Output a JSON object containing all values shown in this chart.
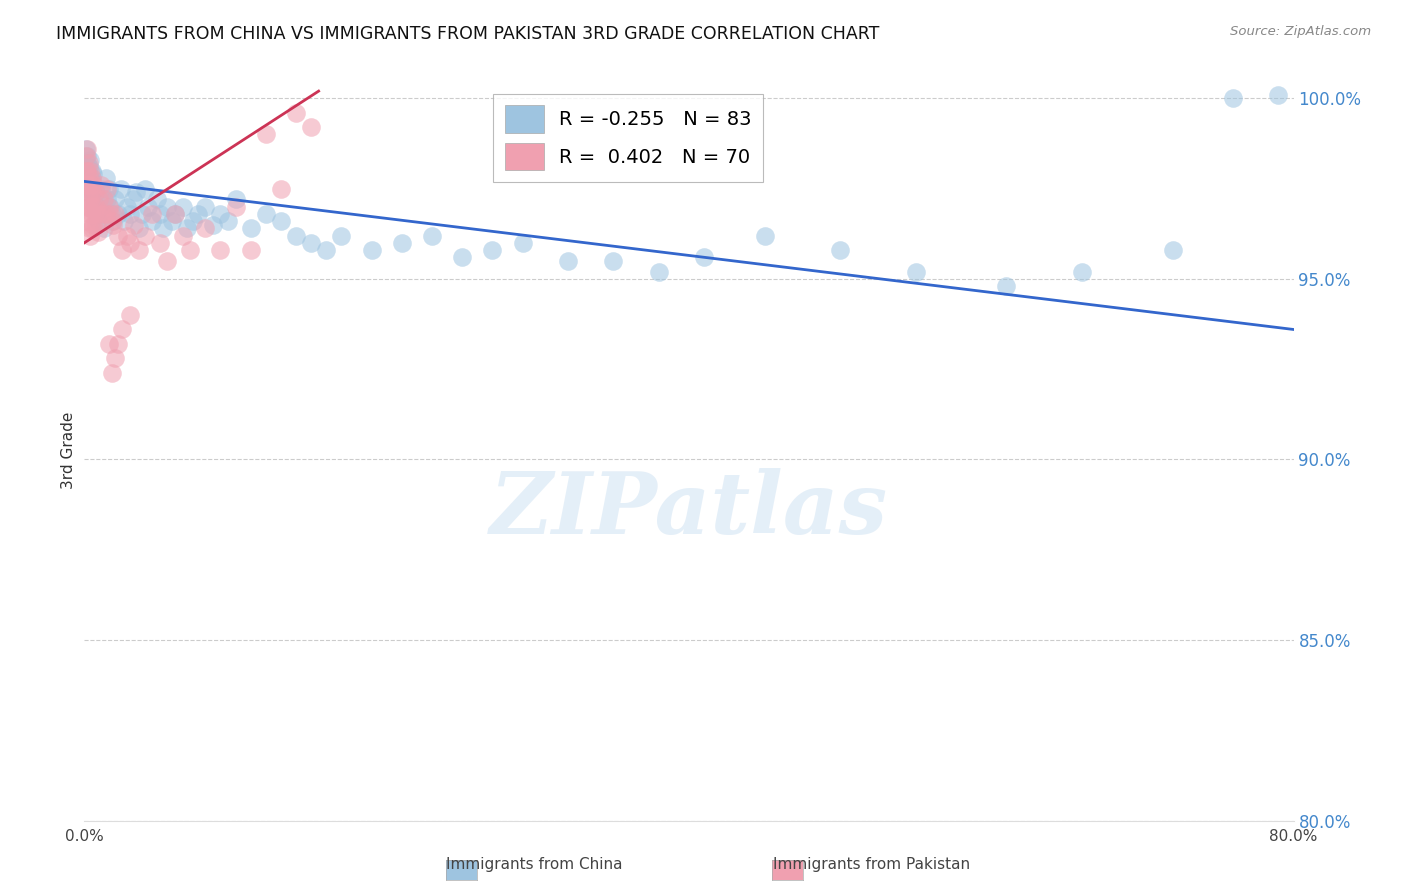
{
  "title": "IMMIGRANTS FROM CHINA VS IMMIGRANTS FROM PAKISTAN 3RD GRADE CORRELATION CHART",
  "source": "Source: ZipAtlas.com",
  "ylabel": "3rd Grade",
  "legend_china": "Immigrants from China",
  "legend_pakistan": "Immigrants from Pakistan",
  "R_china": -0.255,
  "N_china": 83,
  "R_pakistan": 0.402,
  "N_pakistan": 70,
  "color_china": "#9EC4E0",
  "color_pakistan": "#F0A0B0",
  "trendline_china": "#3366CC",
  "trendline_pakistan": "#CC3355",
  "watermark": "ZIPatlas",
  "xlim": [
    0.0,
    0.8
  ],
  "ylim": [
    0.8,
    1.005
  ],
  "yticks": [
    0.8,
    0.85,
    0.9,
    0.95,
    1.0
  ],
  "xticks": [
    0.0,
    0.8
  ],
  "china_x": [
    0.001,
    0.002,
    0.002,
    0.003,
    0.003,
    0.004,
    0.004,
    0.004,
    0.005,
    0.005,
    0.005,
    0.006,
    0.006,
    0.006,
    0.007,
    0.007,
    0.008,
    0.008,
    0.009,
    0.009,
    0.01,
    0.011,
    0.012,
    0.013,
    0.014,
    0.015,
    0.016,
    0.017,
    0.018,
    0.019,
    0.02,
    0.022,
    0.024,
    0.026,
    0.028,
    0.03,
    0.032,
    0.034,
    0.036,
    0.038,
    0.04,
    0.042,
    0.045,
    0.048,
    0.05,
    0.052,
    0.055,
    0.058,
    0.06,
    0.065,
    0.068,
    0.072,
    0.075,
    0.08,
    0.085,
    0.09,
    0.095,
    0.1,
    0.11,
    0.12,
    0.13,
    0.14,
    0.15,
    0.16,
    0.17,
    0.19,
    0.21,
    0.23,
    0.25,
    0.27,
    0.29,
    0.32,
    0.35,
    0.38,
    0.41,
    0.45,
    0.5,
    0.55,
    0.61,
    0.66,
    0.72,
    0.76,
    0.79
  ],
  "china_y": [
    0.986,
    0.984,
    0.982,
    0.981,
    0.979,
    0.983,
    0.978,
    0.975,
    0.977,
    0.98,
    0.974,
    0.979,
    0.976,
    0.972,
    0.975,
    0.97,
    0.974,
    0.968,
    0.972,
    0.966,
    0.97,
    0.975,
    0.968,
    0.964,
    0.978,
    0.972,
    0.975,
    0.97,
    0.968,
    0.966,
    0.972,
    0.968,
    0.975,
    0.966,
    0.97,
    0.968,
    0.972,
    0.974,
    0.964,
    0.968,
    0.975,
    0.97,
    0.966,
    0.972,
    0.968,
    0.964,
    0.97,
    0.966,
    0.968,
    0.97,
    0.964,
    0.966,
    0.968,
    0.97,
    0.965,
    0.968,
    0.966,
    0.972,
    0.964,
    0.968,
    0.966,
    0.962,
    0.96,
    0.958,
    0.962,
    0.958,
    0.96,
    0.962,
    0.956,
    0.958,
    0.96,
    0.955,
    0.955,
    0.952,
    0.956,
    0.962,
    0.958,
    0.952,
    0.948,
    0.952,
    0.958,
    1.0,
    1.001
  ],
  "pakistan_x": [
    0.001,
    0.001,
    0.001,
    0.001,
    0.002,
    0.002,
    0.002,
    0.002,
    0.002,
    0.003,
    0.003,
    0.003,
    0.003,
    0.003,
    0.004,
    0.004,
    0.004,
    0.004,
    0.004,
    0.005,
    0.005,
    0.005,
    0.005,
    0.006,
    0.006,
    0.006,
    0.007,
    0.007,
    0.008,
    0.008,
    0.009,
    0.009,
    0.01,
    0.011,
    0.012,
    0.013,
    0.014,
    0.015,
    0.016,
    0.017,
    0.018,
    0.019,
    0.02,
    0.022,
    0.025,
    0.028,
    0.03,
    0.033,
    0.036,
    0.04,
    0.045,
    0.05,
    0.055,
    0.06,
    0.065,
    0.07,
    0.08,
    0.09,
    0.1,
    0.11,
    0.12,
    0.13,
    0.14,
    0.15,
    0.03,
    0.025,
    0.022,
    0.02,
    0.018,
    0.016
  ],
  "pakistan_y": [
    0.984,
    0.98,
    0.976,
    0.972,
    0.986,
    0.98,
    0.976,
    0.97,
    0.966,
    0.982,
    0.978,
    0.974,
    0.97,
    0.964,
    0.98,
    0.976,
    0.972,
    0.968,
    0.962,
    0.978,
    0.974,
    0.968,
    0.964,
    0.976,
    0.97,
    0.965,
    0.974,
    0.968,
    0.97,
    0.965,
    0.968,
    0.963,
    0.972,
    0.976,
    0.968,
    0.972,
    0.968,
    0.975,
    0.97,
    0.968,
    0.966,
    0.965,
    0.968,
    0.962,
    0.958,
    0.962,
    0.96,
    0.965,
    0.958,
    0.962,
    0.968,
    0.96,
    0.955,
    0.968,
    0.962,
    0.958,
    0.964,
    0.958,
    0.97,
    0.958,
    0.99,
    0.975,
    0.996,
    0.992,
    0.94,
    0.936,
    0.932,
    0.928,
    0.924,
    0.932
  ]
}
